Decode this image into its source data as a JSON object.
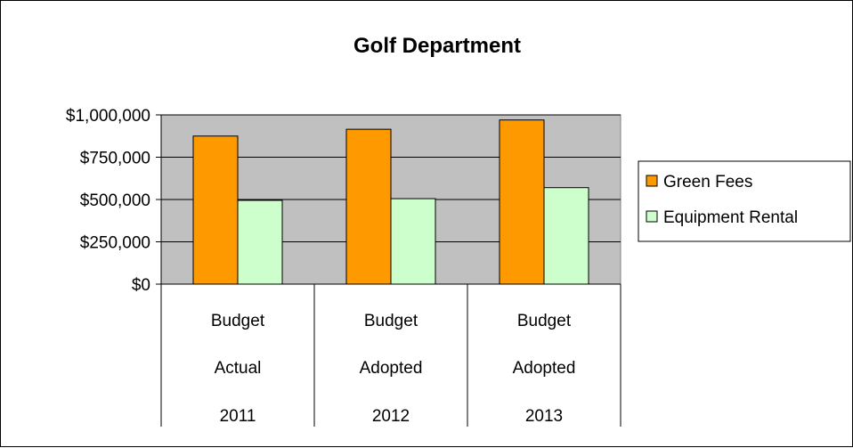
{
  "chart_data": {
    "type": "bar",
    "title": "Golf Department",
    "categories": [
      [
        "Budget",
        "Actual",
        "2011"
      ],
      [
        "Budget",
        "Adopted",
        "2012"
      ],
      [
        "Budget",
        "Adopted",
        "2013"
      ]
    ],
    "series": [
      {
        "name": "Green Fees",
        "values": [
          875000,
          915000,
          970000
        ],
        "color": "#FF9900"
      },
      {
        "name": "Equipment Rental",
        "values": [
          495000,
          505000,
          570000
        ],
        "color": "#CCFFCC"
      }
    ],
    "ylim": [
      0,
      1000000
    ],
    "yticks": [
      0,
      250000,
      500000,
      750000,
      1000000
    ],
    "ytick_labels": [
      "$0",
      "$250,000",
      "$500,000",
      "$750,000",
      "$1,000,000"
    ],
    "plot_background": "#C0C0C0",
    "grid": true,
    "legend_position": "right"
  }
}
